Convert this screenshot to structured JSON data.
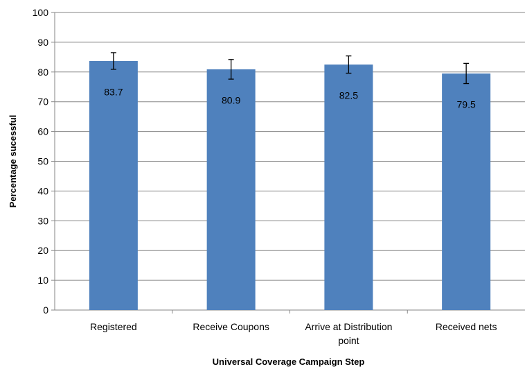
{
  "chart_data": {
    "type": "bar",
    "categories": [
      "Registered",
      "Receive Coupons",
      "Arrive at Distribution point",
      "Received nets"
    ],
    "category_lines": [
      [
        "Registered"
      ],
      [
        "Receive Coupons"
      ],
      [
        "Arrive at Distribution",
        "point"
      ],
      [
        "Received nets"
      ]
    ],
    "values": [
      83.7,
      80.9,
      82.5,
      79.5
    ],
    "error_low": [
      80.9,
      77.6,
      79.6,
      76.1
    ],
    "error_high": [
      86.5,
      84.2,
      85.4,
      82.9
    ],
    "data_labels": [
      "83.7",
      "80.9",
      "82.5",
      "79.5"
    ],
    "title": "",
    "xlabel": "Universal Coverage Campaign Step",
    "ylabel": "Percentage sucessful",
    "ylim": [
      0,
      100
    ],
    "yticks": [
      0,
      10,
      20,
      30,
      40,
      50,
      60,
      70,
      80,
      90,
      100
    ],
    "grid": true,
    "legend": "none",
    "colors": {
      "bar": "#4F81BD",
      "grid": "#868686",
      "axis": "#868686",
      "errorbar": "#000000"
    }
  }
}
